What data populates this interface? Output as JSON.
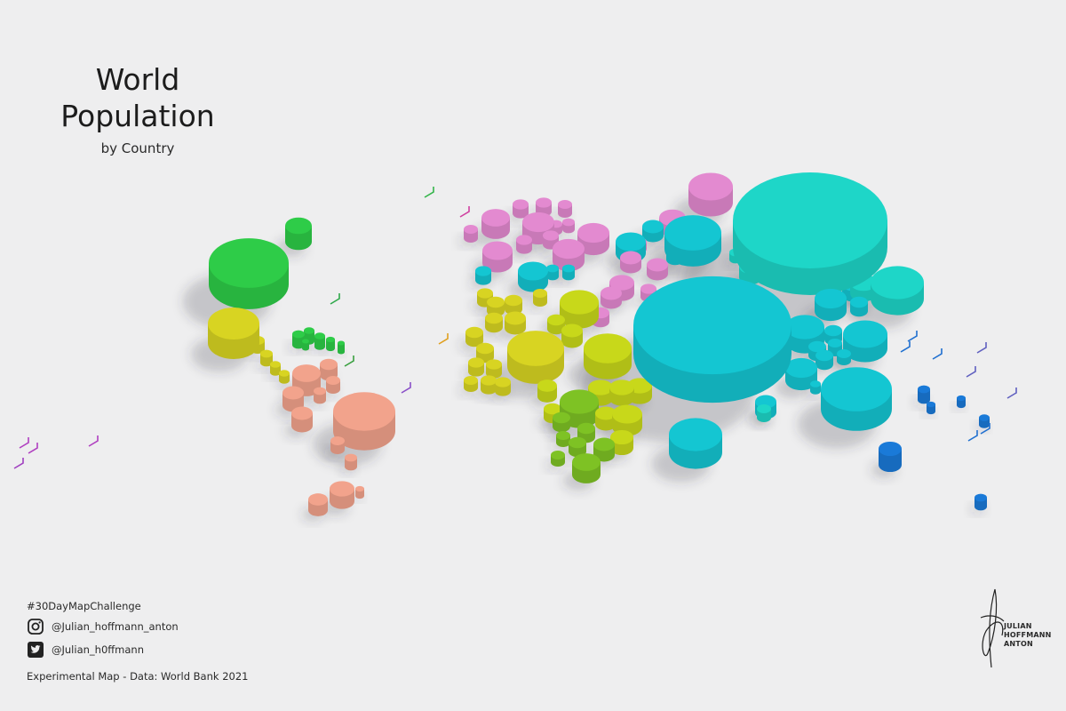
{
  "title": {
    "line1": "World",
    "line2": "Population",
    "subtitle": "by Country"
  },
  "credits": {
    "hashtag": "#30DayMapChallenge",
    "instagram": "@Julian_hoffmann_anton",
    "twitter": "@Julian_h0ffmann",
    "source": "Experimental Map - Data: World Bank 2021"
  },
  "signature": {
    "line1": "JULIAN",
    "line2": "HOFFMANN",
    "line3": "ANTON"
  },
  "icons": [
    "instagram-icon",
    "twitter-icon"
  ],
  "colors": {
    "background": "#eeeeef",
    "north_america": "#2ecc48",
    "central_america": "#d8d422",
    "south_america": "#f2a38c",
    "europe": "#e38ad0",
    "middle_east": "#7ec224",
    "africa": "#c8d81a",
    "asia": "#14c6d2",
    "china": "#1ed6c8",
    "oceania": "#1a7ad8"
  }
}
